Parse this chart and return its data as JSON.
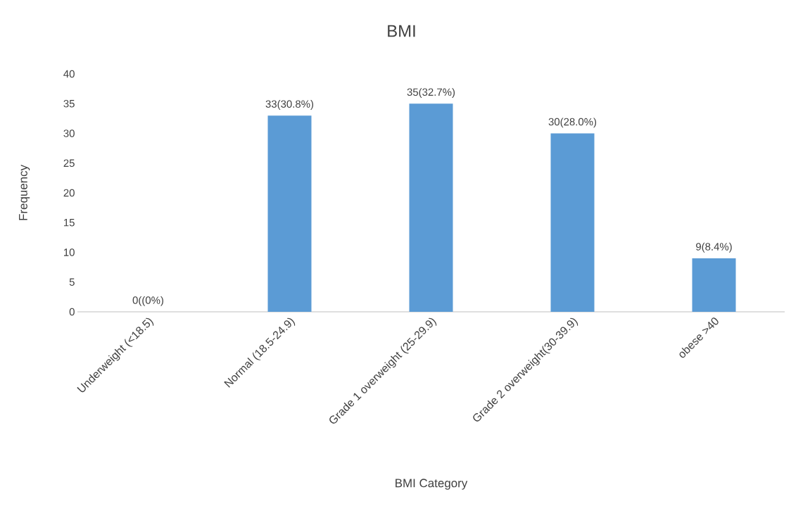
{
  "chart_data": {
    "type": "bar",
    "title": "BMI",
    "xlabel": "BMI Category",
    "ylabel": "Frequency",
    "categories": [
      "Underweight (<18.5)",
      "Normal (18.5-24.9)",
      "Grade 1 overweight (25-29.9)",
      "Grade 2 overweight(30-39.9)",
      "obese >40"
    ],
    "values": [
      0,
      33,
      35,
      30,
      9
    ],
    "value_labels": [
      "0((0%)",
      "33(30.8%)",
      "35(32.7%)",
      "30(28.0%)",
      "9(8.4%)"
    ],
    "color": "#5b9bd5",
    "ylim": [
      0,
      40
    ],
    "yticks": [
      0,
      5,
      10,
      15,
      20,
      25,
      30,
      35,
      40
    ]
  }
}
